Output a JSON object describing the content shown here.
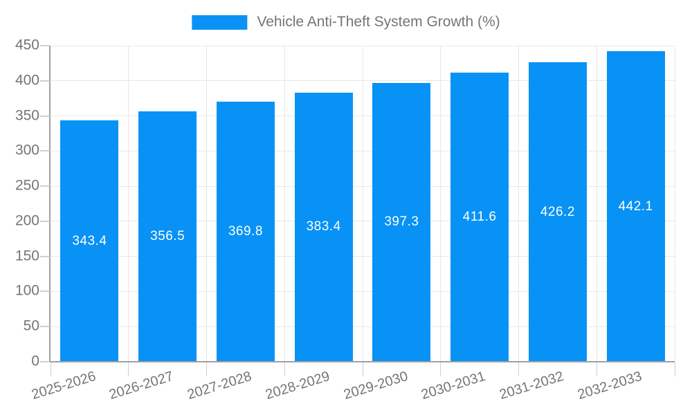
{
  "colors": {
    "bar": "#0892f5",
    "grid": "#e7e7e7",
    "axis": "#a0a0a0",
    "tick": "#cfcfcf",
    "text": "#757575",
    "value_text": "#ffffff",
    "bg": "#ffffff"
  },
  "legend": {
    "label": "Vehicle Anti-Theft System Growth (%)"
  },
  "chart_data": {
    "type": "bar",
    "title": "Vehicle Anti-Theft System Growth (%)",
    "categories": [
      "2025-2026",
      "2026-2027",
      "2027-2028",
      "2028-2029",
      "2029-2030",
      "2030-2031",
      "2031-2032",
      "2032-2033"
    ],
    "values": [
      343.4,
      356.5,
      369.8,
      383.4,
      397.3,
      411.6,
      426.2,
      442.1
    ],
    "value_labels": [
      "343.4",
      "356.5",
      "369.8",
      "383.4",
      "397.3",
      "411.6",
      "426.2",
      "442.1"
    ],
    "xlabel": "",
    "ylabel": "",
    "ylim": [
      0,
      450
    ],
    "ytick_step": 50,
    "ytick_labels": [
      "0",
      "50",
      "100",
      "150",
      "200",
      "250",
      "300",
      "350",
      "400",
      "450"
    ],
    "grid": "both",
    "legend_position": "top-center",
    "value_label_position": "inside-center",
    "xlabel_rotation_deg": -17
  }
}
